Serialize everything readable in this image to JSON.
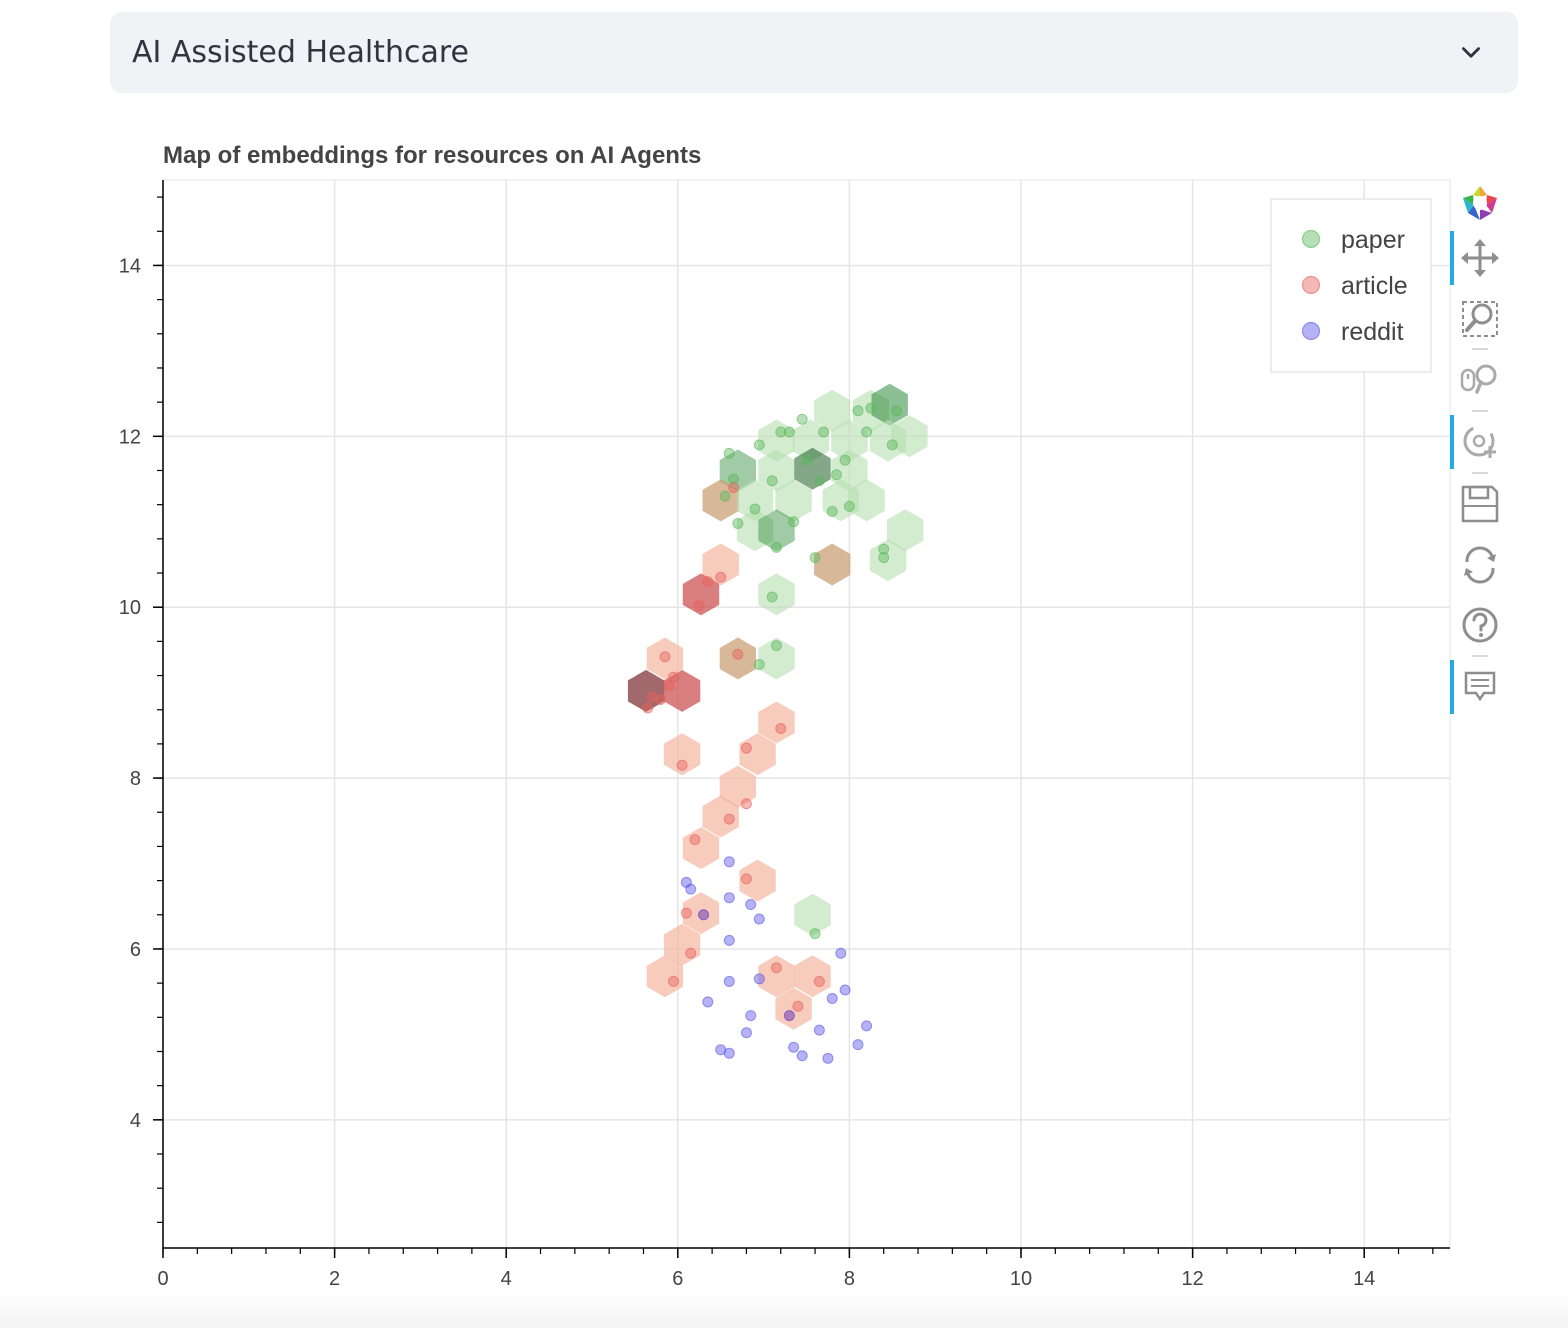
{
  "select": {
    "value": "AI Assisted Healthcare",
    "icon": "chevron-down-icon"
  },
  "toolbar": {
    "tools": [
      {
        "name": "bokeh-logo-icon"
      },
      {
        "name": "pan-tool-icon"
      },
      {
        "name": "box-zoom-tool-icon"
      },
      {
        "name": "wheel-zoom-tool-icon"
      },
      {
        "name": "lasso-select-tool-icon"
      },
      {
        "name": "save-tool-icon"
      },
      {
        "name": "reset-tool-icon"
      },
      {
        "name": "help-tool-icon"
      },
      {
        "name": "hover-tool-icon"
      }
    ]
  },
  "chart_data": {
    "type": "scatter",
    "title": "Map of embeddings for resources on AI Agents",
    "xlim": [
      0,
      15
    ],
    "ylim": [
      2.5,
      15
    ],
    "xticks": [
      0,
      2,
      4,
      6,
      8,
      10,
      12,
      14
    ],
    "yticks": [
      4,
      6,
      8,
      10,
      12,
      14
    ],
    "grid": true,
    "legend_position": "top-right",
    "legend": [
      {
        "label": "paper",
        "color": "#5cb85c"
      },
      {
        "label": "article",
        "color": "#e8615a"
      },
      {
        "label": "reddit",
        "color": "#5b55e8"
      }
    ],
    "series": [
      {
        "name": "paper",
        "color": "#5cb85c",
        "points": [
          [
            6.6,
            11.8
          ],
          [
            6.65,
            11.5
          ],
          [
            6.55,
            11.3
          ],
          [
            6.95,
            11.9
          ],
          [
            6.9,
            11.15
          ],
          [
            6.7,
            10.98
          ],
          [
            7.1,
            11.48
          ],
          [
            7.15,
            10.7
          ],
          [
            7.35,
            11.0
          ],
          [
            7.2,
            12.05
          ],
          [
            7.3,
            12.05
          ],
          [
            7.45,
            12.2
          ],
          [
            7.7,
            12.05
          ],
          [
            8.1,
            12.3
          ],
          [
            8.25,
            12.33
          ],
          [
            8.55,
            12.3
          ],
          [
            8.2,
            12.05
          ],
          [
            8.5,
            11.9
          ],
          [
            7.5,
            11.72
          ],
          [
            7.65,
            11.48
          ],
          [
            7.85,
            11.55
          ],
          [
            7.95,
            11.72
          ],
          [
            7.8,
            11.12
          ],
          [
            8.0,
            11.18
          ],
          [
            7.1,
            10.12
          ],
          [
            7.6,
            10.58
          ],
          [
            8.4,
            10.68
          ],
          [
            8.4,
            10.58
          ],
          [
            7.15,
            9.55
          ],
          [
            6.95,
            9.33
          ],
          [
            7.6,
            6.18
          ]
        ]
      },
      {
        "name": "article",
        "color": "#e8615a",
        "points": [
          [
            6.65,
            11.4
          ],
          [
            6.5,
            10.35
          ],
          [
            6.35,
            10.3
          ],
          [
            6.25,
            10.02
          ],
          [
            5.85,
            9.42
          ],
          [
            5.95,
            9.18
          ],
          [
            5.9,
            9.08
          ],
          [
            5.7,
            8.95
          ],
          [
            5.8,
            8.92
          ],
          [
            5.65,
            8.82
          ],
          [
            6.7,
            9.45
          ],
          [
            7.2,
            8.58
          ],
          [
            6.8,
            8.35
          ],
          [
            6.05,
            8.15
          ],
          [
            6.8,
            7.7
          ],
          [
            6.6,
            7.52
          ],
          [
            6.2,
            7.28
          ],
          [
            6.8,
            6.82
          ],
          [
            6.1,
            6.42
          ],
          [
            6.3,
            6.4
          ],
          [
            6.15,
            5.95
          ],
          [
            5.95,
            5.62
          ],
          [
            7.15,
            5.78
          ],
          [
            7.65,
            5.62
          ],
          [
            7.4,
            5.33
          ],
          [
            7.3,
            5.22
          ]
        ]
      },
      {
        "name": "reddit",
        "color": "#5b55e8",
        "points": [
          [
            6.1,
            6.78
          ],
          [
            6.15,
            6.7
          ],
          [
            6.6,
            7.02
          ],
          [
            6.6,
            6.6
          ],
          [
            6.85,
            6.52
          ],
          [
            6.95,
            6.35
          ],
          [
            6.3,
            6.4
          ],
          [
            6.6,
            6.1
          ],
          [
            6.6,
            5.62
          ],
          [
            6.95,
            5.65
          ],
          [
            6.35,
            5.38
          ],
          [
            6.85,
            5.22
          ],
          [
            6.8,
            5.02
          ],
          [
            7.3,
            5.22
          ],
          [
            6.5,
            4.82
          ],
          [
            6.6,
            4.78
          ],
          [
            7.35,
            4.85
          ],
          [
            7.45,
            4.75
          ],
          [
            7.65,
            5.05
          ],
          [
            7.75,
            4.72
          ],
          [
            7.8,
            5.42
          ],
          [
            7.95,
            5.52
          ],
          [
            7.9,
            5.95
          ],
          [
            8.1,
            4.88
          ],
          [
            8.2,
            5.1
          ]
        ]
      }
    ],
    "hex_bins": [
      {
        "x": 7.8,
        "y": 12.3,
        "fill": "#b6dfb0",
        "alpha": 0.6
      },
      {
        "x": 8.25,
        "y": 12.3,
        "fill": "#b6dfb0",
        "alpha": 0.6
      },
      {
        "x": 8.47,
        "y": 12.37,
        "fill": "#2e8b3a",
        "alpha": 0.55
      },
      {
        "x": 7.15,
        "y": 11.95,
        "fill": "#b6dfb0",
        "alpha": 0.6
      },
      {
        "x": 7.55,
        "y": 11.95,
        "fill": "#b6dfb0",
        "alpha": 0.6
      },
      {
        "x": 8.0,
        "y": 11.95,
        "fill": "#b6dfb0",
        "alpha": 0.6
      },
      {
        "x": 8.45,
        "y": 11.95,
        "fill": "#b6dfb0",
        "alpha": 0.6
      },
      {
        "x": 8.7,
        "y": 12.0,
        "fill": "#b6dfb0",
        "alpha": 0.6
      },
      {
        "x": 6.7,
        "y": 11.6,
        "fill": "#2e8b3a",
        "alpha": 0.45
      },
      {
        "x": 7.15,
        "y": 11.6,
        "fill": "#b6dfb0",
        "alpha": 0.6
      },
      {
        "x": 7.57,
        "y": 11.62,
        "fill": "#1f5e28",
        "alpha": 0.55
      },
      {
        "x": 8.0,
        "y": 11.6,
        "fill": "#b6dfb0",
        "alpha": 0.6
      },
      {
        "x": 6.5,
        "y": 11.25,
        "fill": "#c69a6e",
        "alpha": 0.7
      },
      {
        "x": 6.9,
        "y": 11.25,
        "fill": "#b6dfb0",
        "alpha": 0.6
      },
      {
        "x": 7.35,
        "y": 11.25,
        "fill": "#b6dfb0",
        "alpha": 0.6
      },
      {
        "x": 7.9,
        "y": 11.25,
        "fill": "#b6dfb0",
        "alpha": 0.6
      },
      {
        "x": 8.2,
        "y": 11.25,
        "fill": "#b6dfb0",
        "alpha": 0.6
      },
      {
        "x": 6.9,
        "y": 10.9,
        "fill": "#b6dfb0",
        "alpha": 0.6
      },
      {
        "x": 7.15,
        "y": 10.9,
        "fill": "#2e8b3a",
        "alpha": 0.45
      },
      {
        "x": 8.65,
        "y": 10.9,
        "fill": "#b6dfb0",
        "alpha": 0.6
      },
      {
        "x": 8.45,
        "y": 10.55,
        "fill": "#b6dfb0",
        "alpha": 0.6
      },
      {
        "x": 6.5,
        "y": 10.5,
        "fill": "#f3b09a",
        "alpha": 0.65
      },
      {
        "x": 7.8,
        "y": 10.5,
        "fill": "#c69a6e",
        "alpha": 0.7
      },
      {
        "x": 6.27,
        "y": 10.15,
        "fill": "#c9484a",
        "alpha": 0.7
      },
      {
        "x": 7.15,
        "y": 10.15,
        "fill": "#b6dfb0",
        "alpha": 0.6
      },
      {
        "x": 5.85,
        "y": 9.4,
        "fill": "#f3b09a",
        "alpha": 0.65
      },
      {
        "x": 6.7,
        "y": 9.4,
        "fill": "#c69a6e",
        "alpha": 0.7
      },
      {
        "x": 7.15,
        "y": 9.4,
        "fill": "#b6dfb0",
        "alpha": 0.6
      },
      {
        "x": 5.63,
        "y": 9.02,
        "fill": "#7a2a2e",
        "alpha": 0.7
      },
      {
        "x": 6.05,
        "y": 9.02,
        "fill": "#c9484a",
        "alpha": 0.7
      },
      {
        "x": 7.15,
        "y": 8.65,
        "fill": "#f3b09a",
        "alpha": 0.65
      },
      {
        "x": 6.05,
        "y": 8.28,
        "fill": "#f3b09a",
        "alpha": 0.65
      },
      {
        "x": 6.93,
        "y": 8.28,
        "fill": "#f3b09a",
        "alpha": 0.65
      },
      {
        "x": 6.7,
        "y": 7.9,
        "fill": "#f3b09a",
        "alpha": 0.65
      },
      {
        "x": 6.5,
        "y": 7.55,
        "fill": "#f3b09a",
        "alpha": 0.65
      },
      {
        "x": 6.27,
        "y": 7.18,
        "fill": "#f3b09a",
        "alpha": 0.65
      },
      {
        "x": 6.93,
        "y": 6.8,
        "fill": "#f3b09a",
        "alpha": 0.65
      },
      {
        "x": 6.27,
        "y": 6.42,
        "fill": "#f3b09a",
        "alpha": 0.65
      },
      {
        "x": 7.57,
        "y": 6.4,
        "fill": "#b6dfb0",
        "alpha": 0.6
      },
      {
        "x": 6.05,
        "y": 6.05,
        "fill": "#f3b09a",
        "alpha": 0.65
      },
      {
        "x": 5.85,
        "y": 5.68,
        "fill": "#f3b09a",
        "alpha": 0.65
      },
      {
        "x": 7.15,
        "y": 5.68,
        "fill": "#f3b09a",
        "alpha": 0.65
      },
      {
        "x": 7.57,
        "y": 5.68,
        "fill": "#f3b09a",
        "alpha": 0.65
      },
      {
        "x": 7.35,
        "y": 5.3,
        "fill": "#f3b09a",
        "alpha": 0.65
      }
    ]
  }
}
